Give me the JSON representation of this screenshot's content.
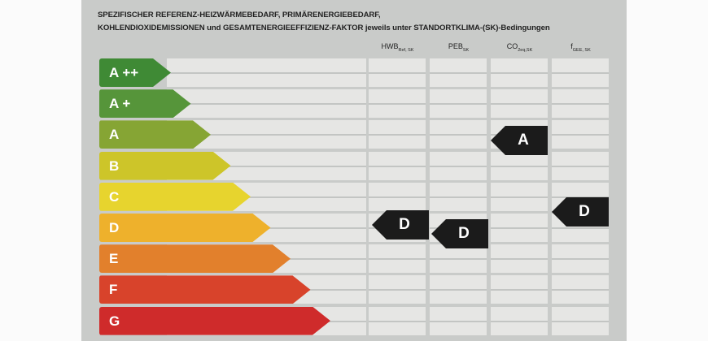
{
  "header": {
    "line1": "SPEZIFISCHER REFERENZ-HEIZWÄRMEBEDARF, PRIMÄRENERGIEBEDARF,",
    "line2": "KOHLENDIOXIDEMISSIONEN und GESAMTENERGIEEFFIZIENZ-FAKTOR jeweils unter STANDORTKLIMA-(SK)-Bedingungen"
  },
  "columns": [
    {
      "main": "HWB",
      "sub": "Ref, SK"
    },
    {
      "main": "PEB",
      "sub": "SK"
    },
    {
      "main": "CO",
      "sub": "2eq,SK"
    },
    {
      "main": "f",
      "sub": "GEE, SK"
    }
  ],
  "classes": [
    {
      "label": "A ++",
      "color": "#3f8a35"
    },
    {
      "label": "A +",
      "color": "#56953a"
    },
    {
      "label": "A",
      "color": "#86a534"
    },
    {
      "label": "B",
      "color": "#cdc529"
    },
    {
      "label": "C",
      "color": "#e7d42e"
    },
    {
      "label": "D",
      "color": "#eeb12c"
    },
    {
      "label": "E",
      "color": "#e2802c"
    },
    {
      "label": "F",
      "color": "#d8432b"
    },
    {
      "label": "G",
      "color": "#cf2b2b"
    }
  ],
  "ratings": [
    {
      "column": "HWB",
      "value": "D"
    },
    {
      "column": "PEB",
      "value": "D"
    },
    {
      "column": "CO2",
      "value": "A"
    },
    {
      "column": "fGEE",
      "value": "D"
    }
  ]
}
